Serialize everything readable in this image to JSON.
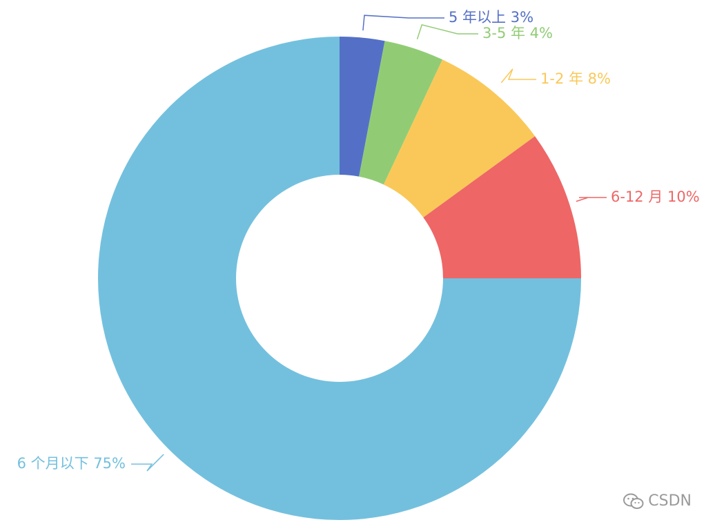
{
  "chart_data": {
    "type": "pie",
    "donut": true,
    "slices": [
      {
        "label": "5 年以上 3%",
        "value": 3,
        "color": "#5470c6"
      },
      {
        "label": "3-5 年 4%",
        "value": 4,
        "color": "#91cc75"
      },
      {
        "label": "1-2 年 8%",
        "value": 8,
        "color": "#fac858"
      },
      {
        "label": "6-12 月 10%",
        "value": 10,
        "color": "#ee6666"
      },
      {
        "label": "6 个月以下 75%",
        "value": 75,
        "color": "#73c0de"
      }
    ],
    "start_angle_deg": 90,
    "direction": "clockwise",
    "legend": "none"
  },
  "watermark": {
    "text": "CSDN",
    "icon": "wechat-icon"
  }
}
